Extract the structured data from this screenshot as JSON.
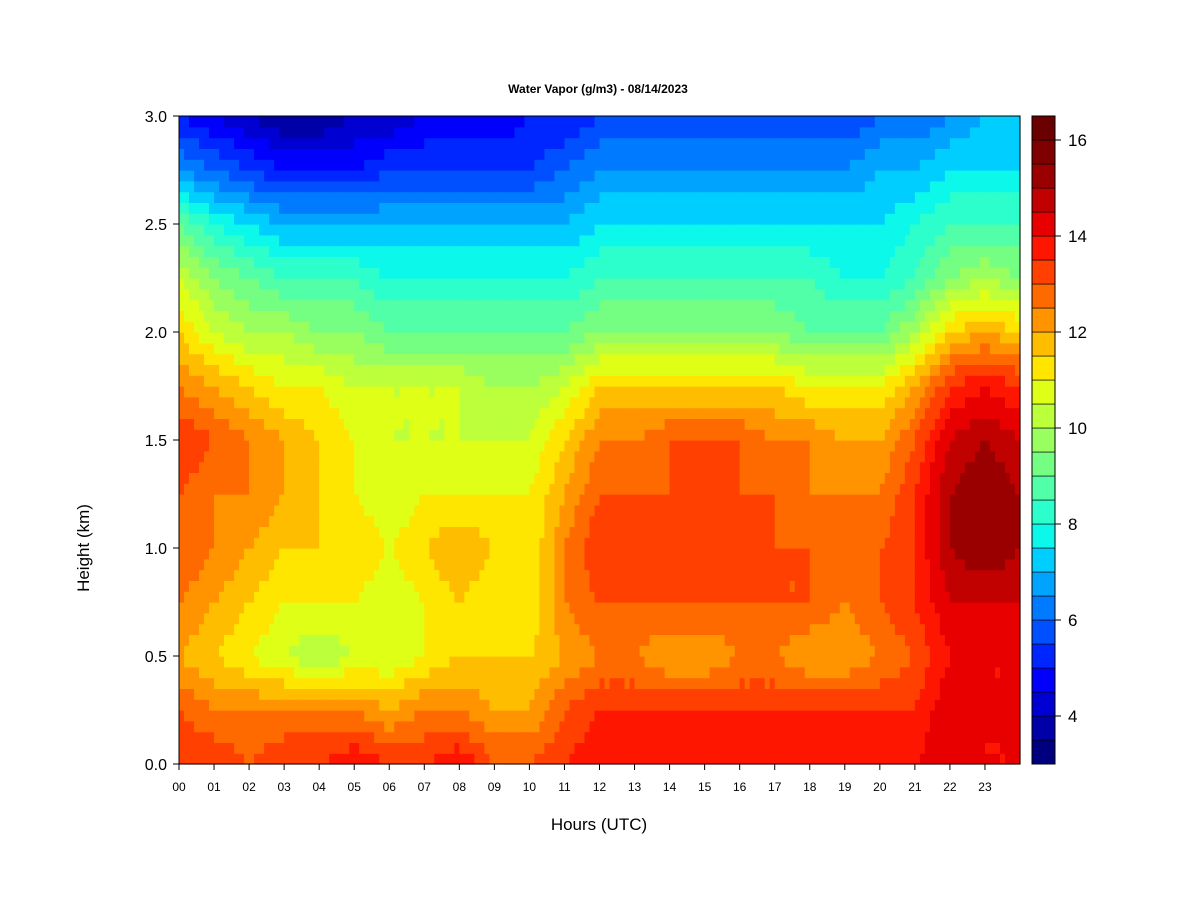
{
  "chart_data": {
    "type": "heatmap",
    "title": "Water Vapor (g/m3) - 08/14/2023",
    "xlabel": "Hours (UTC)",
    "ylabel": "Height (km)",
    "x_ticks": [
      "00",
      "01",
      "02",
      "03",
      "04",
      "05",
      "06",
      "07",
      "08",
      "09",
      "10",
      "11",
      "12",
      "13",
      "14",
      "15",
      "16",
      "17",
      "18",
      "19",
      "20",
      "21",
      "22",
      "23"
    ],
    "xlim": [
      0,
      24
    ],
    "y_ticks": [
      "0.0",
      "0.5",
      "1.0",
      "1.5",
      "2.0",
      "2.5",
      "3.0"
    ],
    "y_tick_values": [
      0,
      0.5,
      1.0,
      1.5,
      2.0,
      2.5,
      3.0
    ],
    "ylim": [
      0,
      3.0
    ],
    "colorbar": {
      "min": 3,
      "max": 16.5,
      "step": 0.5,
      "ticks": [
        "4",
        "6",
        "8",
        "10",
        "12",
        "14",
        "16"
      ],
      "tick_values": [
        4,
        6,
        8,
        10,
        12,
        14,
        16
      ],
      "colors": [
        "#00007F",
        "#0000A8",
        "#0000D2",
        "#0000FC",
        "#0026FF",
        "#0050FF",
        "#007AFF",
        "#00A4FF",
        "#00CEFF",
        "#0CF8EB",
        "#2CFFCB",
        "#50FFA7",
        "#74FF83",
        "#98FF5F",
        "#BCFF3B",
        "#E0FF17",
        "#FFE600",
        "#FFBD00",
        "#FF9400",
        "#FF6A00",
        "#FF4000",
        "#FF1600",
        "#E80000",
        "#C10000",
        "#9A0000",
        "#7F0000",
        "#6A0000"
      ]
    },
    "height_levels_km": [
      0.0,
      0.25,
      0.5,
      0.75,
      1.0,
      1.25,
      1.5,
      1.75,
      2.0,
      2.25,
      2.5,
      2.75,
      3.0
    ],
    "hour_columns": [
      0,
      1,
      2,
      3,
      4,
      5,
      6,
      7,
      8,
      9,
      10,
      11,
      12,
      13,
      14,
      15,
      16,
      17,
      18,
      19,
      20,
      21,
      22,
      23,
      24
    ],
    "values": [
      [
        13.5,
        13.5,
        13.0,
        13.5,
        13.5,
        14.0,
        13.5,
        13.5,
        14.0,
        13.0,
        13.0,
        13.5,
        14.0,
        14.0,
        14.0,
        14.0,
        14.0,
        14.0,
        14.0,
        14.0,
        14.0,
        14.0,
        14.5,
        14.0,
        14.0
      ],
      [
        13.0,
        12.5,
        12.5,
        12.5,
        12.5,
        12.5,
        12.0,
        12.5,
        12.5,
        12.0,
        12.0,
        13.0,
        13.5,
        13.5,
        13.5,
        13.5,
        13.5,
        13.5,
        13.5,
        13.5,
        13.5,
        13.5,
        14.5,
        14.0,
        14.0
      ],
      [
        12.0,
        11.5,
        11.0,
        10.5,
        10.0,
        10.5,
        10.5,
        11.0,
        11.5,
        11.5,
        11.5,
        12.0,
        12.5,
        12.5,
        12.0,
        12.0,
        12.5,
        12.5,
        12.0,
        12.0,
        12.5,
        13.0,
        14.0,
        14.0,
        14.0
      ],
      [
        12.5,
        12.0,
        11.5,
        11.0,
        11.0,
        11.0,
        10.5,
        11.0,
        11.5,
        11.0,
        11.0,
        12.5,
        13.0,
        13.0,
        13.0,
        13.0,
        13.0,
        13.0,
        13.0,
        12.5,
        13.0,
        13.5,
        14.5,
        14.5,
        14.5
      ],
      [
        13.0,
        12.5,
        12.0,
        11.5,
        11.5,
        11.5,
        11.0,
        11.5,
        12.0,
        11.5,
        11.0,
        12.5,
        13.5,
        13.5,
        13.5,
        13.5,
        13.5,
        13.0,
        13.0,
        13.0,
        13.0,
        13.5,
        15.0,
        15.5,
        15.0
      ],
      [
        13.0,
        12.5,
        12.5,
        12.0,
        11.5,
        11.0,
        10.5,
        11.0,
        11.0,
        11.0,
        11.0,
        12.0,
        13.0,
        13.0,
        13.0,
        13.5,
        13.0,
        13.0,
        12.5,
        12.5,
        12.5,
        13.5,
        15.0,
        15.5,
        15.0
      ],
      [
        13.5,
        13.0,
        12.5,
        12.0,
        11.5,
        11.0,
        10.5,
        10.5,
        10.5,
        10.5,
        10.5,
        11.5,
        12.5,
        12.5,
        13.0,
        13.0,
        13.0,
        12.5,
        12.5,
        12.0,
        12.0,
        13.0,
        14.5,
        15.0,
        14.5
      ],
      [
        12.5,
        12.0,
        11.5,
        11.0,
        11.0,
        10.5,
        10.5,
        10.5,
        10.5,
        10.0,
        10.0,
        10.5,
        11.5,
        11.5,
        11.5,
        11.5,
        11.5,
        11.5,
        11.0,
        11.0,
        11.0,
        12.0,
        13.5,
        14.0,
        13.5
      ],
      [
        11.5,
        10.5,
        10.0,
        10.0,
        9.5,
        9.5,
        9.0,
        9.0,
        9.0,
        9.0,
        9.0,
        9.0,
        9.5,
        9.5,
        9.5,
        9.5,
        9.5,
        9.5,
        9.0,
        9.0,
        9.0,
        10.0,
        11.5,
        12.0,
        11.5
      ],
      [
        10.5,
        9.5,
        9.0,
        8.5,
        8.5,
        8.5,
        8.0,
        8.0,
        8.0,
        8.0,
        8.0,
        8.0,
        8.5,
        8.5,
        8.5,
        8.5,
        8.5,
        8.5,
        8.5,
        8.0,
        8.0,
        8.5,
        9.5,
        10.0,
        9.5
      ],
      [
        9.0,
        8.0,
        7.5,
        7.0,
        7.0,
        7.0,
        7.0,
        7.0,
        7.0,
        7.0,
        7.0,
        7.0,
        7.5,
        7.5,
        7.5,
        7.5,
        7.5,
        7.5,
        7.5,
        7.5,
        7.5,
        8.0,
        8.5,
        8.5,
        8.5
      ],
      [
        6.5,
        6.0,
        5.5,
        5.0,
        5.0,
        5.0,
        5.5,
        5.5,
        5.5,
        5.5,
        5.5,
        6.0,
        6.5,
        6.5,
        6.5,
        6.5,
        6.5,
        6.5,
        6.5,
        6.5,
        7.0,
        7.0,
        7.5,
        7.5,
        7.5
      ],
      [
        5.0,
        4.5,
        4.0,
        3.5,
        3.5,
        4.0,
        4.0,
        4.5,
        4.5,
        4.5,
        5.0,
        5.0,
        5.5,
        5.5,
        5.5,
        5.5,
        5.5,
        5.5,
        5.5,
        5.5,
        6.0,
        6.0,
        6.5,
        7.0,
        7.0
      ]
    ],
    "grid": false,
    "legend": "colorbar-right"
  }
}
